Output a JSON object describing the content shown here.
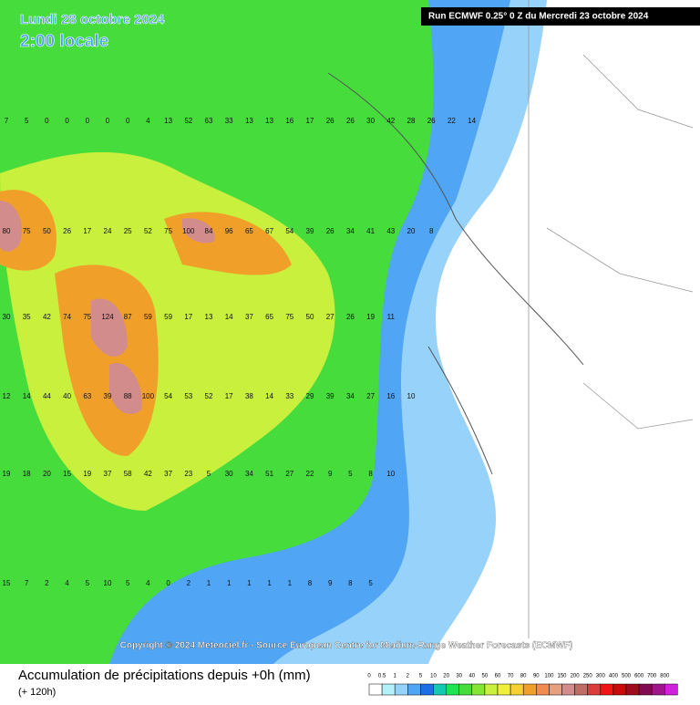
{
  "header": {
    "date": "Lundi 28 octobre 2024",
    "time": "2:00 locale",
    "run": "Run ECMWF 0.25° 0 Z du Mercredi 23 octobre 2024"
  },
  "copyright": "Copyright © 2024 Meteociel.fr - Source European Centre for Medium-Range Weather Forecasts (ECMWF)",
  "footer": {
    "title": "Accumulation de précipitations depuis +0h (mm)",
    "subtitle": "(+ 120h)"
  },
  "legend": {
    "labels": [
      0,
      0.5,
      1,
      2,
      5,
      10,
      20,
      30,
      40,
      50,
      60,
      70,
      80,
      90,
      100,
      150,
      200,
      250,
      300,
      400,
      500,
      600,
      700,
      800
    ],
    "colors": [
      "#ffffff",
      "#b4f0fa",
      "#96d2fa",
      "#50a5f5",
      "#1e6ee6",
      "#14c8b4",
      "#1ee650",
      "#46dc3c",
      "#82e632",
      "#c8f03c",
      "#f0f03c",
      "#f5d232",
      "#f0a028",
      "#f08c50",
      "#e6a07d",
      "#d28c8c",
      "#be6e64",
      "#dc3c3c",
      "#f01414",
      "#c80a0a",
      "#a00a1e",
      "#820a50",
      "#a0148c",
      "#d21ede"
    ]
  },
  "map": {
    "values": [
      [
        7,
        5,
        0,
        0,
        0,
        0,
        0,
        4,
        13,
        52,
        63,
        33,
        13,
        13,
        16,
        17,
        26,
        26,
        30,
        42,
        28,
        26,
        22,
        14
      ],
      [
        80,
        75,
        50,
        26,
        17,
        24,
        25,
        52,
        75,
        100,
        84,
        96,
        65,
        67,
        54,
        39,
        26,
        34,
        41,
        43,
        20,
        8
      ],
      [
        30,
        35,
        42,
        74,
        75,
        124,
        87,
        59,
        59,
        17,
        13,
        14,
        37,
        65,
        75,
        50,
        27,
        26,
        19,
        11
      ],
      [
        12,
        14,
        44,
        40,
        63,
        39,
        88,
        100,
        54,
        53,
        52,
        17,
        38,
        14,
        33,
        29,
        39,
        34,
        27,
        16,
        10
      ],
      [
        19,
        18,
        20,
        15,
        19,
        37,
        58,
        42,
        37,
        23,
        5,
        30,
        34,
        51,
        27,
        22,
        9,
        5,
        8,
        10
      ],
      [
        15,
        7,
        2,
        4,
        5,
        10,
        5,
        4,
        0,
        2,
        1,
        1,
        1,
        1,
        1,
        8,
        9,
        8,
        5
      ]
    ]
  }
}
